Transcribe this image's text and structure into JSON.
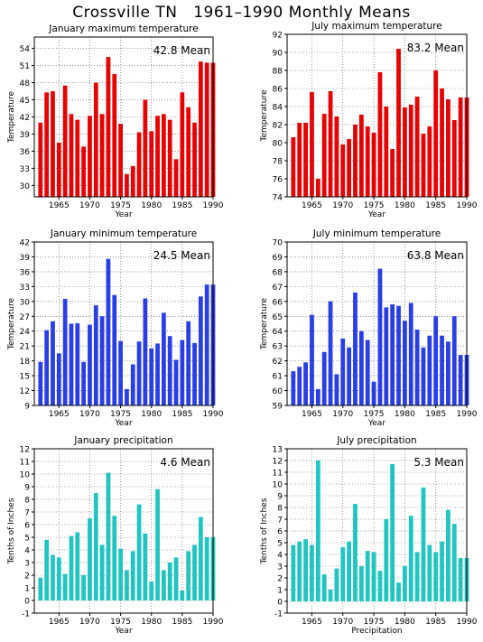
{
  "title": "Crossville TN   1961–1990 Monthly Means",
  "colors": {
    "red": "#e60000",
    "blue": "#2a3ee6",
    "teal": "#20c4c0"
  },
  "chart_data": [
    {
      "type": "bar",
      "title": "January maximum temperature",
      "xlabel": "Year",
      "ylabel": "Temperature",
      "mean_label": "42.8 Mean",
      "color": "red",
      "ylim": [
        28,
        56
      ],
      "yticks": [
        30,
        33,
        36,
        39,
        42,
        45,
        48,
        51,
        54
      ],
      "xlim": [
        1961,
        1990
      ],
      "xticks": [
        1965,
        1970,
        1975,
        1980,
        1985,
        1990
      ],
      "x": [
        1962,
        1963,
        1964,
        1965,
        1966,
        1967,
        1968,
        1969,
        1970,
        1971,
        1972,
        1973,
        1974,
        1975,
        1976,
        1977,
        1978,
        1979,
        1980,
        1981,
        1982,
        1983,
        1984,
        1985,
        1986,
        1987,
        1988,
        1989,
        1990
      ],
      "values": [
        41.0,
        46.3,
        46.5,
        37.5,
        47.5,
        42.5,
        41.5,
        36.8,
        42.2,
        48.0,
        42.5,
        52.5,
        49.5,
        40.8,
        32.0,
        33.4,
        39.3,
        45.0,
        39.5,
        42.2,
        42.5,
        41.5,
        34.6,
        46.3,
        43.7,
        41.0,
        51.7,
        51.5,
        51.5
      ]
    },
    {
      "type": "bar",
      "title": "July maximum temperature",
      "xlabel": "Year",
      "ylabel": "Temperature",
      "mean_label": "83.2 Mean",
      "color": "red",
      "ylim": [
        74,
        92
      ],
      "yticks": [
        74,
        76,
        78,
        80,
        82,
        84,
        86,
        88,
        90,
        92
      ],
      "xlim": [
        1961,
        1990
      ],
      "xticks": [
        1965,
        1970,
        1975,
        1980,
        1985,
        1990
      ],
      "x": [
        1962,
        1963,
        1964,
        1965,
        1966,
        1967,
        1968,
        1969,
        1970,
        1971,
        1972,
        1973,
        1974,
        1975,
        1976,
        1977,
        1978,
        1979,
        1980,
        1981,
        1982,
        1983,
        1984,
        1985,
        1986,
        1987,
        1988,
        1989,
        1990
      ],
      "values": [
        80.6,
        82.2,
        82.2,
        85.6,
        76.0,
        83.2,
        85.7,
        82.9,
        79.8,
        80.4,
        82.0,
        83.1,
        81.8,
        81.1,
        87.8,
        84.0,
        79.3,
        90.4,
        83.9,
        84.2,
        85.1,
        81.0,
        81.8,
        88.0,
        86.0,
        84.8,
        82.5,
        85.0,
        85.0
      ]
    },
    {
      "type": "bar",
      "title": "January minimum temperature",
      "xlabel": "Year",
      "ylabel": "Temperature",
      "mean_label": "24.5 Mean",
      "color": "blue",
      "ylim": [
        9,
        42
      ],
      "yticks": [
        9,
        12,
        15,
        18,
        21,
        24,
        27,
        30,
        33,
        36,
        39,
        42
      ],
      "xlim": [
        1961,
        1990
      ],
      "xticks": [
        1965,
        1970,
        1975,
        1980,
        1985,
        1990
      ],
      "x": [
        1962,
        1963,
        1964,
        1965,
        1966,
        1967,
        1968,
        1969,
        1970,
        1971,
        1972,
        1973,
        1974,
        1975,
        1976,
        1977,
        1978,
        1979,
        1980,
        1981,
        1982,
        1983,
        1984,
        1985,
        1986,
        1987,
        1988,
        1989,
        1990
      ],
      "values": [
        17.8,
        24.2,
        26.0,
        19.5,
        30.5,
        25.5,
        25.6,
        17.8,
        25.3,
        29.2,
        27.0,
        38.6,
        31.3,
        22.0,
        12.3,
        17.3,
        21.9,
        30.6,
        20.5,
        21.5,
        27.7,
        23.0,
        18.2,
        22.2,
        26.0,
        21.6,
        31.0,
        33.4,
        33.4
      ]
    },
    {
      "type": "bar",
      "title": "July minimum temperature",
      "xlabel": "Year",
      "ylabel": "Temperature",
      "mean_label": "63.8 Mean",
      "color": "blue",
      "ylim": [
        59,
        70
      ],
      "yticks": [
        59,
        60,
        61,
        62,
        63,
        64,
        65,
        66,
        67,
        68,
        69,
        70
      ],
      "xlim": [
        1961,
        1990
      ],
      "xticks": [
        1965,
        1970,
        1975,
        1980,
        1985,
        1990
      ],
      "x": [
        1962,
        1963,
        1964,
        1965,
        1966,
        1967,
        1968,
        1969,
        1970,
        1971,
        1972,
        1973,
        1974,
        1975,
        1976,
        1977,
        1978,
        1979,
        1980,
        1981,
        1982,
        1983,
        1984,
        1985,
        1986,
        1987,
        1988,
        1989,
        1990
      ],
      "values": [
        61.3,
        61.6,
        61.9,
        65.1,
        60.1,
        62.6,
        66.0,
        61.1,
        63.5,
        62.9,
        66.6,
        64.0,
        63.4,
        60.6,
        68.2,
        65.6,
        65.8,
        65.7,
        64.7,
        65.9,
        64.1,
        62.9,
        63.7,
        65.0,
        63.7,
        63.3,
        65.0,
        62.4,
        62.4
      ]
    },
    {
      "type": "bar",
      "title": "January precipitation",
      "xlabel": "Year",
      "ylabel": "Tenths of Inches",
      "mean_label": "4.6 Mean",
      "color": "teal",
      "ylim": [
        -1,
        12
      ],
      "yticks": [
        -1,
        0,
        1,
        2,
        3,
        4,
        5,
        6,
        7,
        8,
        9,
        10,
        11,
        12
      ],
      "xlim": [
        1961,
        1990
      ],
      "xticks": [
        1965,
        1970,
        1975,
        1980,
        1985,
        1990
      ],
      "x": [
        1962,
        1963,
        1964,
        1965,
        1966,
        1967,
        1968,
        1969,
        1970,
        1971,
        1972,
        1973,
        1974,
        1975,
        1976,
        1977,
        1978,
        1979,
        1980,
        1981,
        1982,
        1983,
        1984,
        1985,
        1986,
        1987,
        1988,
        1989,
        1990
      ],
      "values": [
        1.8,
        4.8,
        3.6,
        3.4,
        2.1,
        5.1,
        5.4,
        2.0,
        6.5,
        8.5,
        4.4,
        10.1,
        6.7,
        4.1,
        2.4,
        3.9,
        7.6,
        5.3,
        1.5,
        8.8,
        2.4,
        3.0,
        3.4,
        0.8,
        3.9,
        4.4,
        6.6,
        5.0,
        5.0
      ]
    },
    {
      "type": "bar",
      "title": "July precipitation",
      "xlabel": "Precipitation",
      "ylabel": "Tenths of Inches",
      "mean_label": "5.3 Mean",
      "color": "teal",
      "ylim": [
        -1,
        13
      ],
      "yticks": [
        -1,
        0,
        1,
        2,
        3,
        4,
        5,
        6,
        7,
        8,
        9,
        10,
        11,
        12,
        13
      ],
      "xlim": [
        1961,
        1990
      ],
      "xticks": [
        1965,
        1970,
        1975,
        1980,
        1985,
        1990
      ],
      "x": [
        1962,
        1963,
        1964,
        1965,
        1966,
        1967,
        1968,
        1969,
        1970,
        1971,
        1972,
        1973,
        1974,
        1975,
        1976,
        1977,
        1978,
        1979,
        1980,
        1981,
        1982,
        1983,
        1984,
        1985,
        1986,
        1987,
        1988,
        1989,
        1990
      ],
      "values": [
        4.8,
        5.1,
        5.3,
        4.8,
        12.0,
        2.3,
        1.0,
        2.8,
        4.6,
        5.1,
        8.3,
        3.0,
        4.3,
        4.2,
        2.6,
        7.0,
        11.7,
        1.6,
        3.0,
        7.3,
        4.2,
        9.7,
        4.8,
        4.2,
        5.1,
        7.8,
        6.6,
        3.7,
        3.7
      ]
    }
  ]
}
